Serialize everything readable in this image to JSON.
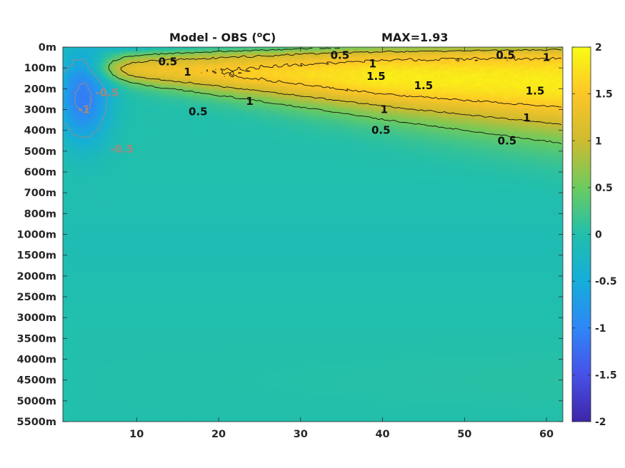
{
  "chart_data": {
    "type": "heatmap",
    "title": "Model - OBS (°C)",
    "title_parts": {
      "prefix": "Model - OBS (",
      "superscript": "o",
      "suffix": "C)"
    },
    "annotation": "MAX=1.93",
    "x_ticks": [
      10,
      20,
      30,
      40,
      50,
      60
    ],
    "xlim": [
      1,
      62
    ],
    "y_ticks": [
      "0m",
      "100m",
      "200m",
      "300m",
      "400m",
      "500m",
      "600m",
      "700m",
      "800m",
      "1000m",
      "1500m",
      "2000m",
      "2500m",
      "3000m",
      "3500m",
      "4000m",
      "4500m",
      "5000m",
      "5500m"
    ],
    "colorbar": {
      "ticks": [
        2,
        1.5,
        1,
        0.5,
        0,
        -0.5,
        -1,
        -1.5,
        -2
      ],
      "range": [
        -2,
        2
      ],
      "colormap": "parula",
      "colors": [
        "#3e26a8",
        "#4751e8",
        "#2e87f7",
        "#15adda",
        "#21bfac",
        "#6ccb5f",
        "#cebb2f",
        "#fdc627",
        "#f9fb14"
      ]
    },
    "contour_levels": [
      -1,
      -0.5,
      0.5,
      1,
      1.5
    ],
    "contour_labels": [
      {
        "text": "0.5",
        "x": 13.8,
        "y": 0.7
      },
      {
        "text": "1",
        "x": 16.2,
        "y": 1.2
      },
      {
        "text": "0.5",
        "x": 34.8,
        "y": 0.4
      },
      {
        "text": "1",
        "x": 38.8,
        "y": 0.8
      },
      {
        "text": "1.5",
        "x": 39.2,
        "y": 1.4
      },
      {
        "text": "1.5",
        "x": 45.0,
        "y": 1.85
      },
      {
        "text": "0.5",
        "x": 55.0,
        "y": 0.4
      },
      {
        "text": "1",
        "x": 60.0,
        "y": 0.5
      },
      {
        "text": "1.5",
        "x": 58.6,
        "y": 2.1
      },
      {
        "text": "0.5",
        "x": 17.5,
        "y": 3.1
      },
      {
        "text": "1",
        "x": 23.8,
        "y": 2.6
      },
      {
        "text": "1",
        "x": 40.2,
        "y": 3.0
      },
      {
        "text": "0.5",
        "x": 39.8,
        "y": 4.0
      },
      {
        "text": "1",
        "x": 57.6,
        "y": 3.4
      },
      {
        "text": "0.5",
        "x": 55.2,
        "y": 4.5
      },
      {
        "text": "-1",
        "x": 3.6,
        "y": 3.0
      },
      {
        "text": "-0.5",
        "x": 6.4,
        "y": 2.2
      },
      {
        "text": "-0.5",
        "x": 8.2,
        "y": 4.9
      }
    ],
    "field_description": {
      "max": 1.93,
      "warm_core_depth_levels": [
        0.5,
        1.4
      ],
      "cold_pool_max": -1.1
    },
    "grid": false
  }
}
